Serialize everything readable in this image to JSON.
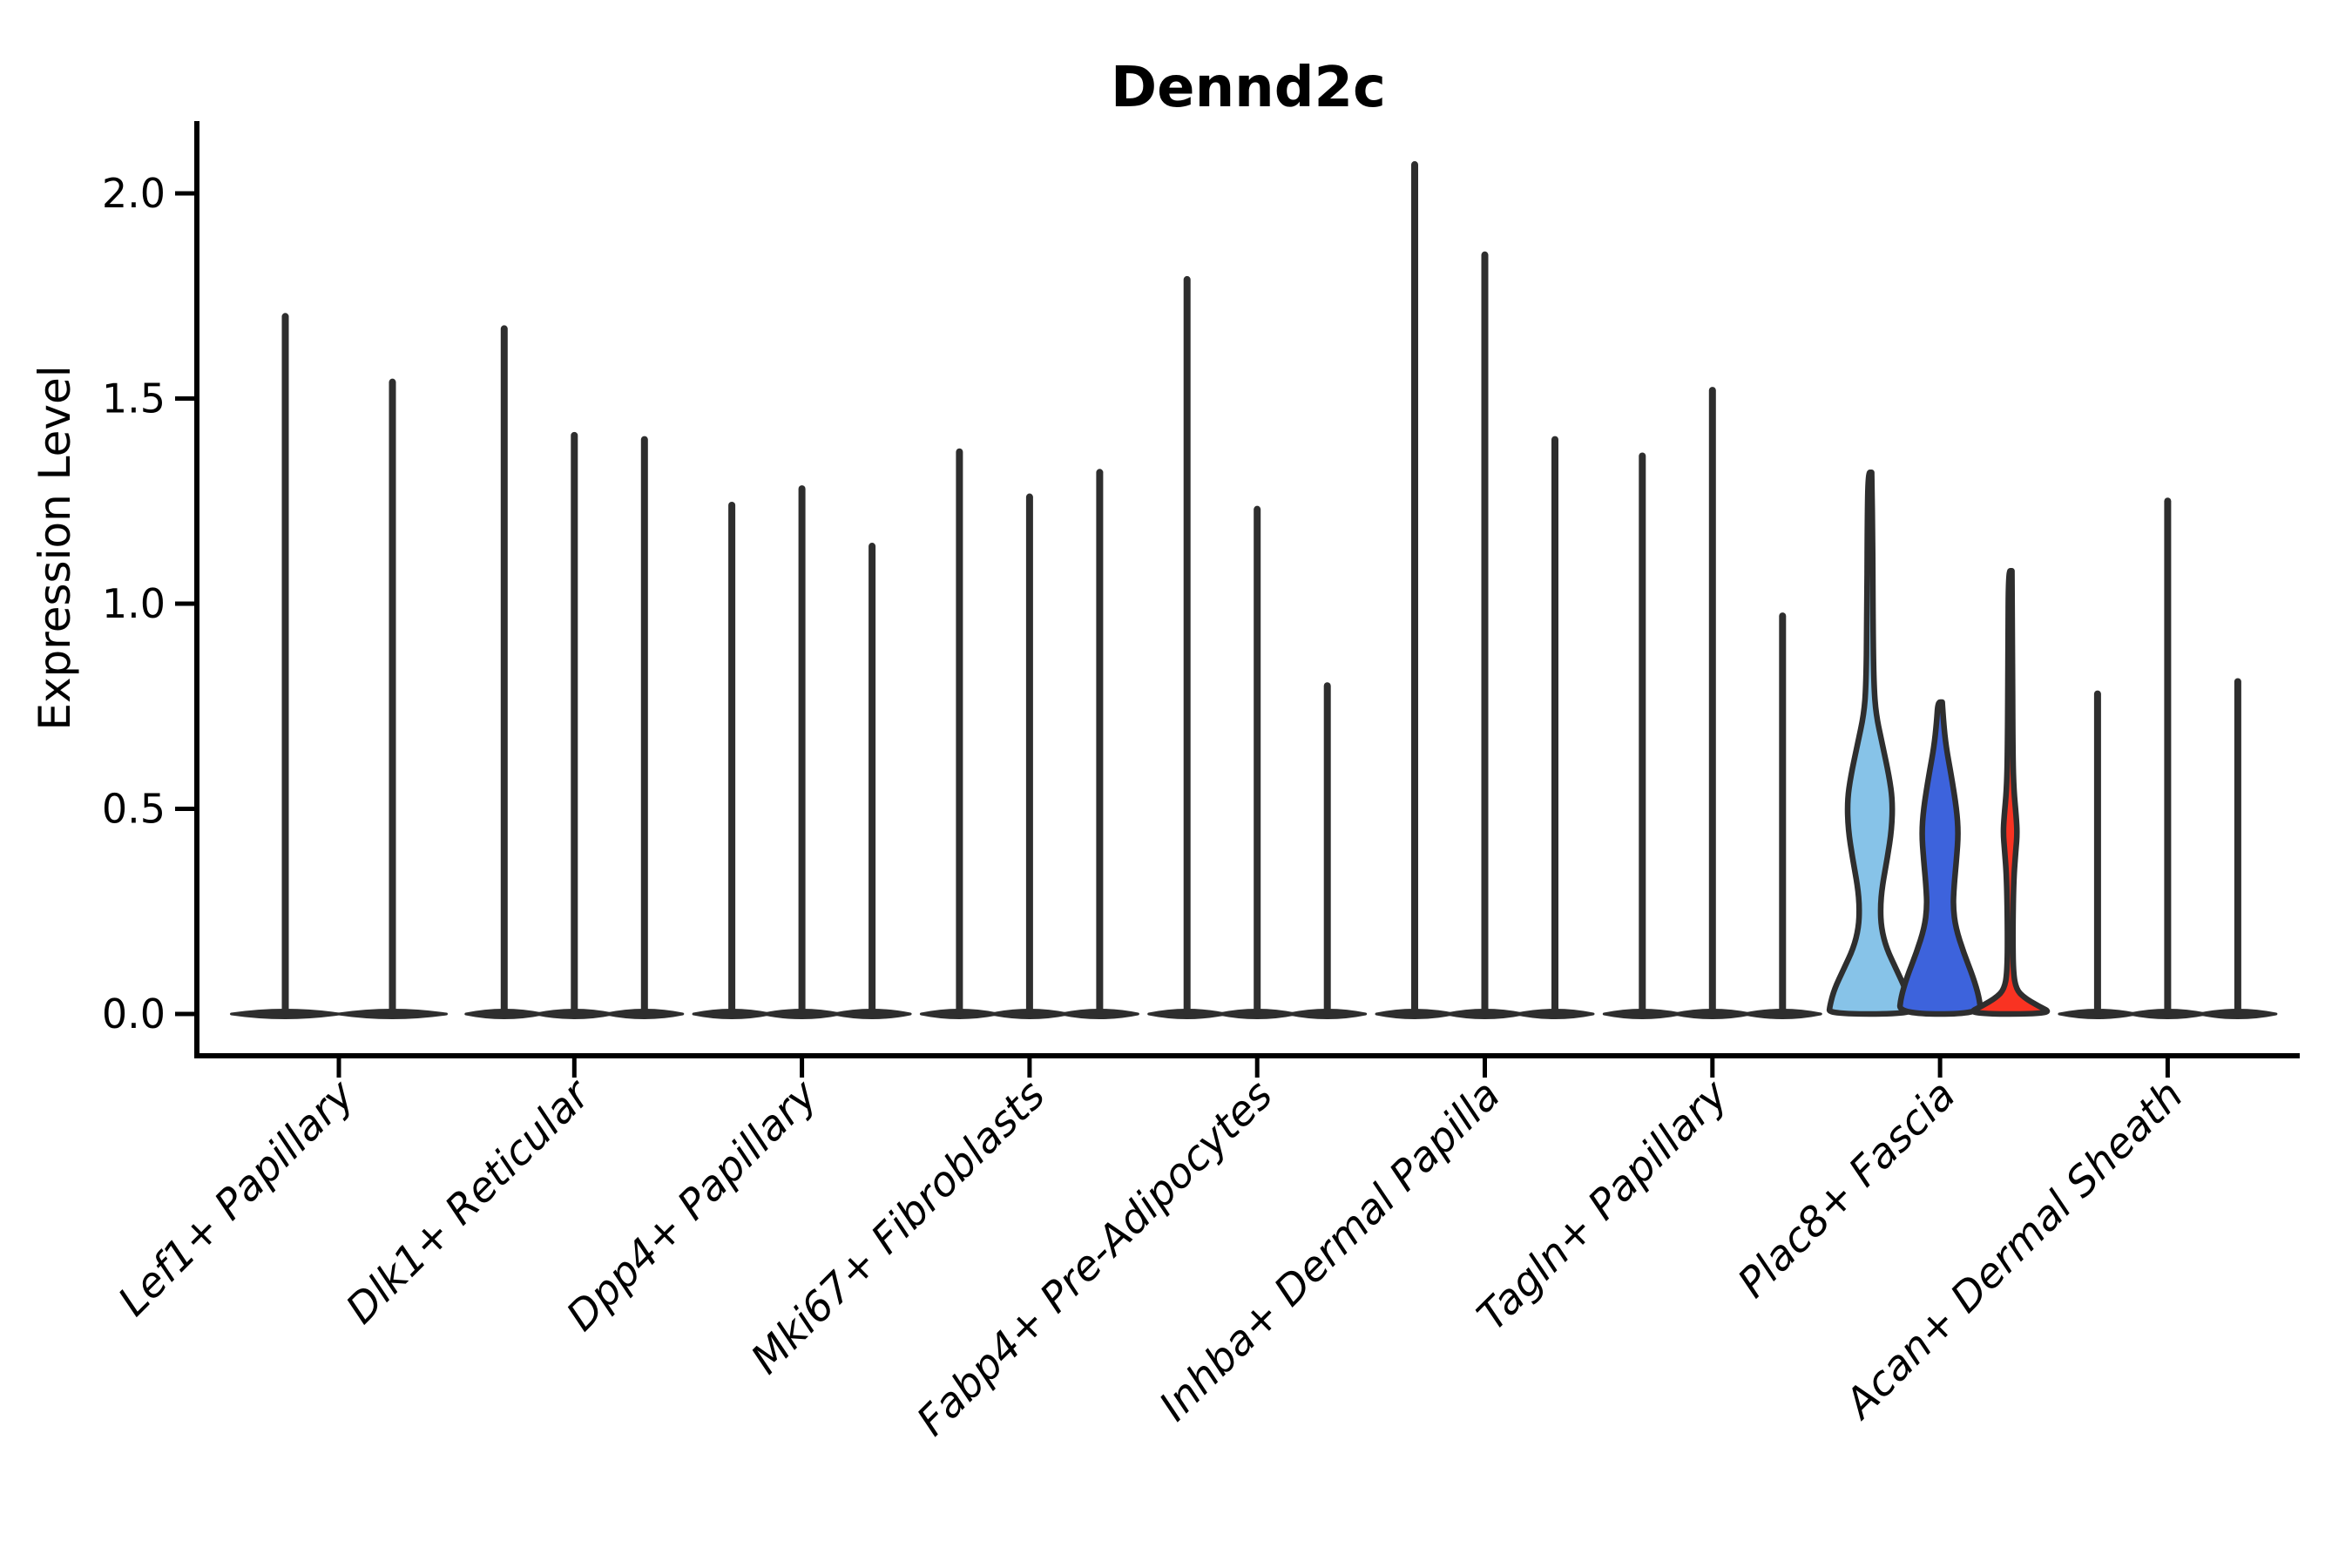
{
  "title": "Dennd2c",
  "chart_data": {
    "type": "violin",
    "title": "Dennd2c",
    "xlabel": "",
    "ylabel": "Expression Level",
    "ylim": [
      0,
      2.18
    ],
    "yticks": [
      "0.0",
      "0.5",
      "1.0",
      "1.5",
      "2.0"
    ],
    "ytick_values": [
      0.0,
      0.5,
      1.0,
      1.5,
      2.0
    ],
    "grid": "off",
    "legend": "none",
    "categories": [
      "Lef1+ Papillary",
      "Dlk1+ Reticular",
      "Dpp4+ Papillary",
      "Mki67+ Fibroblasts",
      "Fabp4+ Pre-Adipocytes",
      "Inhba+ Dermal Papilla",
      "Tagln+ Papillary",
      "Plac8+ Fascia",
      "Acan+ Dermal Sheath"
    ],
    "colors": {
      "outline": "#2e2e2e",
      "axis": "#000000",
      "split_series": [
        "#87C3E8",
        "#3D63DC",
        "#F93322"
      ]
    },
    "groups": [
      {
        "category": "Lef1+ Papillary",
        "violins": [
          {
            "max": 1.7
          },
          {
            "max": 1.54
          }
        ]
      },
      {
        "category": "Dlk1+ Reticular",
        "violins": [
          {
            "max": 1.67
          },
          {
            "max": 1.41
          },
          {
            "max": 1.4
          }
        ]
      },
      {
        "category": "Dpp4+ Papillary",
        "violins": [
          {
            "max": 1.24
          },
          {
            "max": 1.28
          },
          {
            "max": 1.14
          }
        ]
      },
      {
        "category": "Mki67+ Fibroblasts",
        "violins": [
          {
            "max": 1.37
          },
          {
            "max": 1.26
          },
          {
            "max": 1.32
          }
        ]
      },
      {
        "category": "Fabp4+ Pre-Adipocytes",
        "violins": [
          {
            "max": 1.79
          },
          {
            "max": 1.23
          },
          {
            "max": 0.8
          }
        ]
      },
      {
        "category": "Inhba+ Dermal Papilla",
        "violins": [
          {
            "max": 2.07
          },
          {
            "max": 1.85
          },
          {
            "max": 1.4
          }
        ]
      },
      {
        "category": "Tagln+ Papillary",
        "violins": [
          {
            "max": 1.36
          },
          {
            "max": 1.52
          },
          {
            "max": 0.97
          }
        ]
      },
      {
        "category": "Plac8+ Fascia",
        "violins": [
          {
            "max": 1.32,
            "fill": "#87C3E8",
            "profile": [
              [
                1.32,
                2
              ],
              [
                1.2,
                3
              ],
              [
                0.95,
                3.5
              ],
              [
                0.8,
                4.5
              ],
              [
                0.73,
                7
              ],
              [
                0.66,
                14
              ],
              [
                0.58,
                22
              ],
              [
                0.52,
                26
              ],
              [
                0.45,
                25
              ],
              [
                0.38,
                20
              ],
              [
                0.31,
                14
              ],
              [
                0.26,
                12
              ],
              [
                0.21,
                13
              ],
              [
                0.16,
                19
              ],
              [
                0.11,
                30
              ],
              [
                0.06,
                41
              ],
              [
                0.02,
                46
              ],
              [
                0,
                47
              ]
            ]
          },
          {
            "max": 0.76,
            "fill": "#3D63DC",
            "profile": [
              [
                0.76,
                2.5
              ],
              [
                0.71,
                4
              ],
              [
                0.65,
                7
              ],
              [
                0.58,
                13
              ],
              [
                0.5,
                19
              ],
              [
                0.44,
                21
              ],
              [
                0.38,
                19
              ],
              [
                0.31,
                16
              ],
              [
                0.26,
                15
              ],
              [
                0.21,
                18
              ],
              [
                0.15,
                27
              ],
              [
                0.09,
                38
              ],
              [
                0.04,
                45
              ],
              [
                0,
                47
              ]
            ]
          },
          {
            "max": 1.08,
            "fill": "#F93322",
            "profile": [
              [
                1.08,
                2
              ],
              [
                0.9,
                2.5
              ],
              [
                0.65,
                3
              ],
              [
                0.55,
                4
              ],
              [
                0.48,
                7
              ],
              [
                0.44,
                8
              ],
              [
                0.4,
                6.5
              ],
              [
                0.33,
                4
              ],
              [
                0.2,
                3
              ],
              [
                0.1,
                3.5
              ],
              [
                0.06,
                7
              ],
              [
                0.04,
                16
              ],
              [
                0.02,
                32
              ],
              [
                0,
                50
              ]
            ]
          }
        ]
      },
      {
        "category": "Acan+ Dermal Sheath",
        "violins": [
          {
            "max": 0.78
          },
          {
            "max": 1.25
          },
          {
            "max": 0.81
          }
        ]
      }
    ]
  }
}
